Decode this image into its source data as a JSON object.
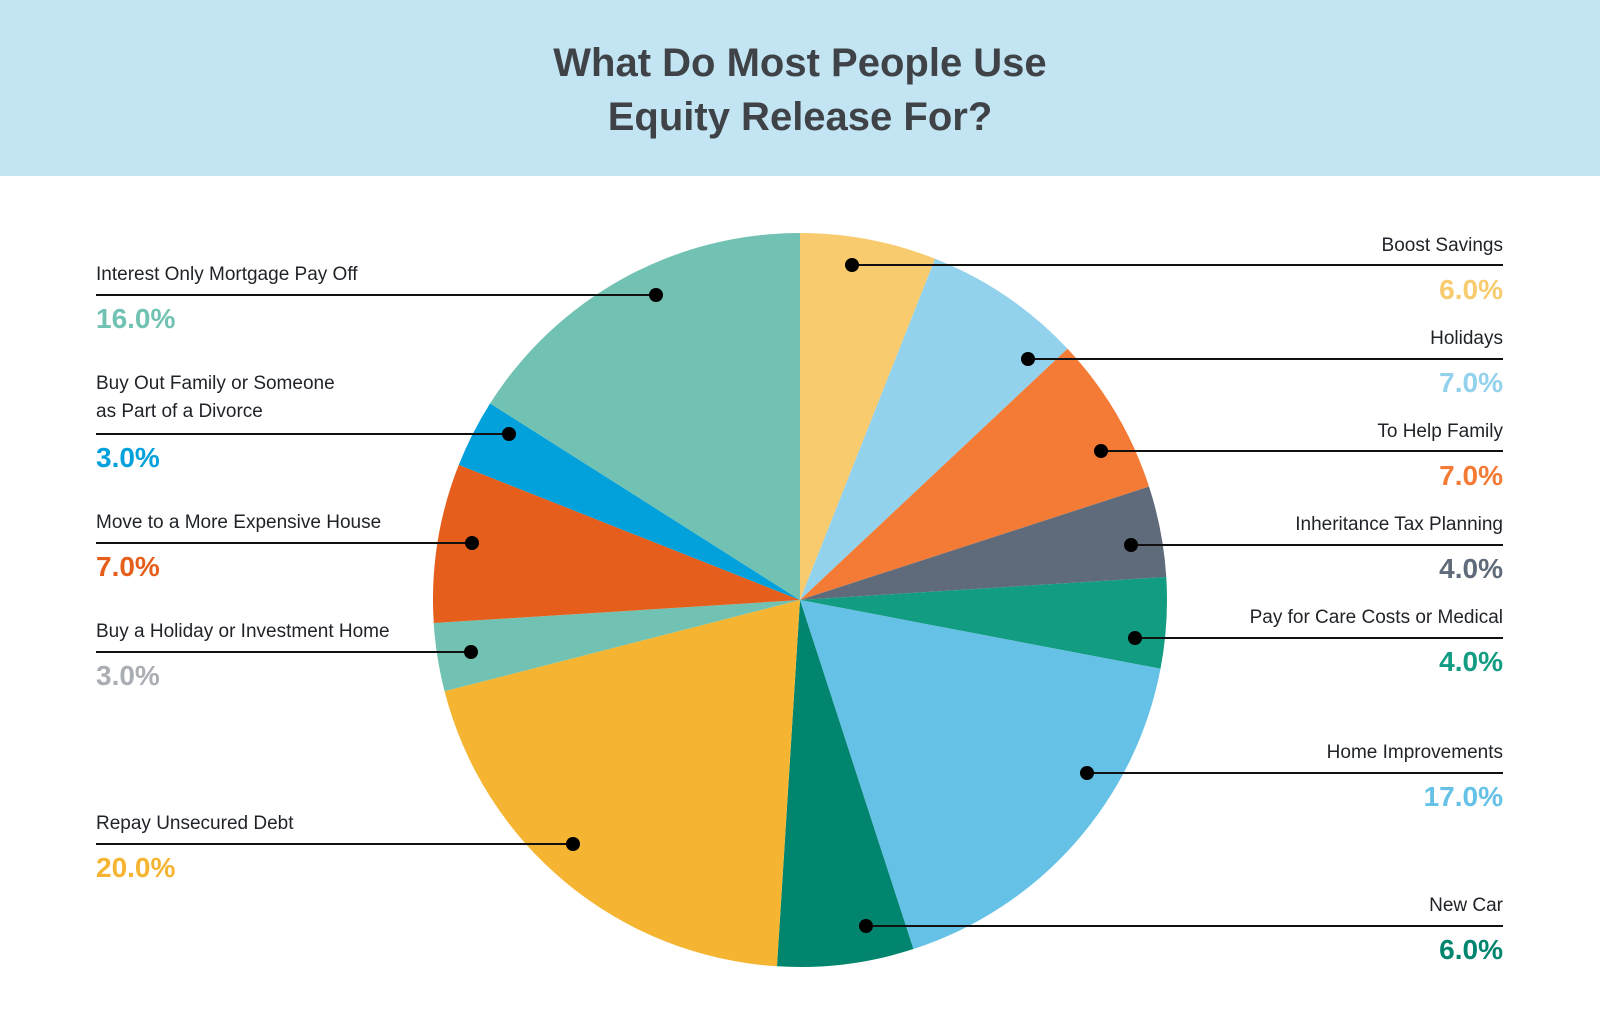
{
  "header": {
    "title_line1": "What Do Most People Use",
    "title_line2": "Equity Release For?"
  },
  "chart_data": {
    "type": "pie",
    "title": "What Do Most People Use Equity Release For?",
    "start": "12 o'clock",
    "direction": "clockwise",
    "slices": [
      {
        "label": "Boost Savings",
        "value": 6.0,
        "display": "6.0%",
        "color": "#f7cb6e",
        "value_color": "#f7cb6e",
        "side": "right"
      },
      {
        "label": "Holidays",
        "value": 7.0,
        "display": "7.0%",
        "color": "#93d2ec",
        "value_color": "#93d2ec",
        "side": "right"
      },
      {
        "label": "To Help Family",
        "value": 7.0,
        "display": "7.0%",
        "color": "#f47b35",
        "value_color": "#f47b35",
        "side": "right"
      },
      {
        "label": "Inheritance Tax Planning",
        "value": 4.0,
        "display": "4.0%",
        "color": "#5f6b7a",
        "value_color": "#5f6b7a",
        "side": "right"
      },
      {
        "label": "Pay for Care Costs or Medical",
        "value": 4.0,
        "display": "4.0%",
        "color": "#129c82",
        "value_color": "#129c82",
        "side": "right"
      },
      {
        "label": "Home Improvements",
        "value": 17.0,
        "display": "17.0%",
        "color": "#65c1e6",
        "value_color": "#65c1e6",
        "side": "right"
      },
      {
        "label": "New Car",
        "value": 6.0,
        "display": "6.0%",
        "color": "#02856f",
        "value_color": "#02856f",
        "side": "right"
      },
      {
        "label": "Repay Unsecured Debt",
        "value": 20.0,
        "display": "20.0%",
        "color": "#f5b532",
        "value_color": "#f5b532",
        "side": "left"
      },
      {
        "label": "Buy a Holiday or Investment Home",
        "value": 3.0,
        "display": "3.0%",
        "color": "#71c2b2",
        "value_color": "#a9adb4",
        "side": "left"
      },
      {
        "label": "Move to a More Expensive House",
        "value": 7.0,
        "display": "7.0%",
        "color": "#e55e1b",
        "value_color": "#e55e1b",
        "side": "left"
      },
      {
        "label_lines": [
          "Buy Out Family or Someone",
          "as Part of a Divorce"
        ],
        "value": 3.0,
        "display": "3.0%",
        "color": "#03a1db",
        "value_color": "#03a1db",
        "side": "left"
      },
      {
        "label": "Interest Only Mortgage Pay Off",
        "value": 16.0,
        "display": "16.0%",
        "color": "#71c2b2",
        "value_color": "#71c2b2",
        "side": "left"
      }
    ]
  }
}
